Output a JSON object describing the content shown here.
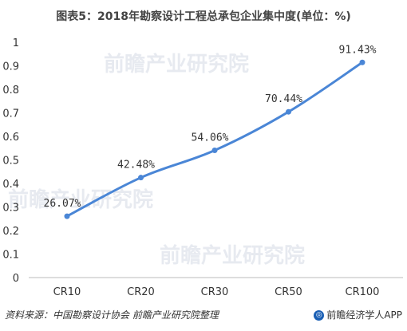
{
  "title": "图表5：2018年勘察设计工程总承包企业集中度(单位：%)",
  "watermark": "前瞻产业研究院",
  "footer": {
    "source": "资料来源：中国勘察设计协会 前瞻产业研究院整理",
    "brand": "前瞻经济学人APP"
  },
  "colors": {
    "line": "#4a86d6",
    "accent": "#1a5fb4"
  },
  "chart_data": {
    "type": "line",
    "categories": [
      "CR10",
      "CR20",
      "CR30",
      "CR50",
      "CR100"
    ],
    "values": [
      0.2607,
      0.4248,
      0.5406,
      0.7044,
      0.9143
    ],
    "data_labels": [
      "26.07%",
      "42.48%",
      "54.06%",
      "70.44%",
      "91.43%"
    ],
    "ylim": [
      0,
      1
    ],
    "yticks": [
      "0",
      "0.1",
      "0.2",
      "0.3",
      "0.4",
      "0.5",
      "0.6",
      "0.7",
      "0.8",
      "0.9",
      "1"
    ],
    "xlabel": "",
    "ylabel": "",
    "grid": false
  }
}
